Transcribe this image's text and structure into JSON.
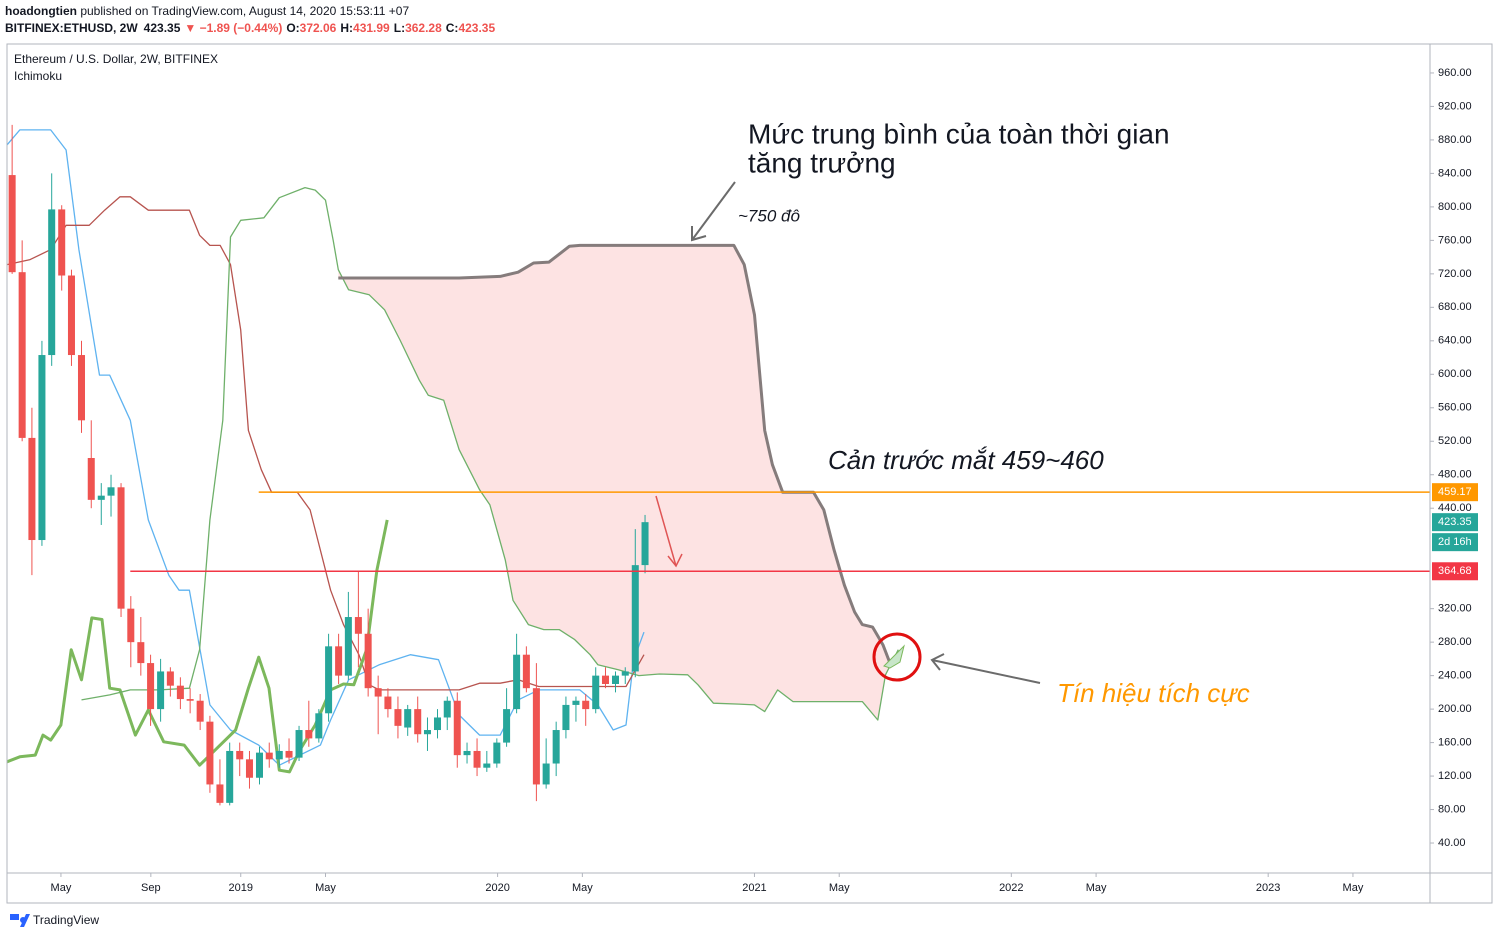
{
  "header": {
    "author": "hoadongtien",
    "published": " published on TradingView.com, August 14, 2020 15:53:11 +07",
    "symbol": "BITFINEX:ETHUSD, 2W",
    "change": "▼ −1.89 (−0.44%)",
    "ohlc_keys": [
      "O:",
      "H:",
      "L:",
      "C:"
    ]
  },
  "chart_data": {
    "type": "candlestick",
    "title": "Ethereum / U.S. Dollar, 2W, BITFINEX",
    "indicator": "Ichimoku",
    "x": [
      2018.11,
      2018.149,
      2018.187,
      2018.226,
      2018.264,
      2018.303,
      2018.341,
      2018.38,
      2018.418,
      2018.457,
      2018.495,
      2018.534,
      2018.572,
      2018.611,
      2018.649,
      2018.688,
      2018.726,
      2018.765,
      2018.803,
      2018.842,
      2018.88,
      2018.919,
      2018.957,
      2018.996,
      2019.034,
      2019.073,
      2019.111,
      2019.15,
      2019.188,
      2019.227,
      2019.265,
      2019.304,
      2019.342,
      2019.381,
      2019.419,
      2019.458,
      2019.496,
      2019.535,
      2019.573,
      2019.612,
      2019.65,
      2019.689,
      2019.727,
      2019.766,
      2019.804,
      2019.843,
      2019.881,
      2019.92,
      2019.958,
      2019.997,
      2020.035,
      2020.074,
      2020.112,
      2020.151,
      2020.189,
      2020.228,
      2020.266,
      2020.305,
      2020.343,
      2020.382,
      2020.42,
      2020.459,
      2020.497,
      2020.536,
      2020.574
    ],
    "open": [
      838,
      722,
      524,
      402,
      623,
      797,
      718,
      623,
      500,
      450,
      455,
      465,
      320,
      280,
      255,
      200,
      245,
      228,
      212,
      210,
      185,
      110,
      88,
      150,
      140,
      118,
      148,
      140,
      150,
      142,
      175,
      165,
      195,
      275,
      240,
      310,
      290,
      225,
      215,
      200,
      178,
      200,
      170,
      175,
      190,
      210,
      145,
      150,
      130,
      135,
      160,
      200,
      265,
      225,
      110,
      135,
      175,
      205,
      210,
      200,
      240,
      230,
      240,
      245,
      372.06
    ],
    "high": [
      898,
      760,
      560,
      640,
      840,
      802,
      725,
      640,
      545,
      470,
      480,
      470,
      335,
      310,
      265,
      260,
      250,
      238,
      225,
      218,
      192,
      140,
      160,
      160,
      150,
      155,
      160,
      158,
      165,
      180,
      210,
      200,
      290,
      290,
      340,
      365,
      320,
      240,
      225,
      215,
      205,
      215,
      190,
      200,
      215,
      220,
      160,
      165,
      150,
      165,
      225,
      290,
      275,
      255,
      165,
      185,
      215,
      215,
      218,
      250,
      250,
      245,
      250,
      415,
      431.99
    ],
    "low": [
      720,
      520,
      360,
      395,
      610,
      700,
      610,
      530,
      440,
      420,
      430,
      310,
      250,
      240,
      180,
      185,
      215,
      200,
      195,
      175,
      100,
      85,
      85,
      120,
      105,
      110,
      130,
      130,
      135,
      138,
      155,
      160,
      185,
      230,
      235,
      250,
      215,
      170,
      190,
      165,
      168,
      160,
      150,
      165,
      175,
      130,
      135,
      120,
      125,
      130,
      155,
      195,
      220,
      90,
      105,
      120,
      165,
      185,
      180,
      195,
      225,
      220,
      230,
      238,
      362.28
    ],
    "close": [
      722,
      524,
      402,
      623,
      797,
      718,
      623,
      545,
      450,
      455,
      465,
      320,
      280,
      255,
      200,
      245,
      228,
      212,
      210,
      185,
      110,
      88,
      150,
      140,
      118,
      148,
      140,
      150,
      142,
      175,
      165,
      195,
      275,
      240,
      310,
      290,
      225,
      215,
      200,
      180,
      200,
      170,
      175,
      190,
      210,
      145,
      150,
      130,
      135,
      160,
      200,
      265,
      225,
      110,
      135,
      175,
      205,
      210,
      200,
      240,
      230,
      240,
      245,
      372,
      423.35
    ],
    "up_color": "#26a69a",
    "down_color": "#ef5350",
    "overlays": [
      {
        "color": "#5fb3f0",
        "bold": false,
        "x": [
          2018.09,
          2018.14,
          2018.26,
          2018.32,
          2018.37,
          2018.45,
          2018.49,
          2018.57,
          2018.64,
          2018.72,
          2018.76,
          2018.8,
          2018.88,
          2018.96,
          2019.07,
          2019.15,
          2019.31,
          2019.35,
          2019.42,
          2019.54,
          2019.66,
          2019.77,
          2019.85,
          2019.93,
          2020.01,
          2020.08,
          2020.16,
          2020.32,
          2020.39,
          2020.45,
          2020.5,
          2020.53,
          2020.57
        ],
        "values": [
          874,
          892,
          892,
          868,
          749,
          599,
          599,
          545,
          426,
          360,
          342,
          342,
          205,
          175,
          157,
          133,
          157,
          187,
          235,
          253,
          265,
          259,
          193,
          169,
          169,
          211,
          223,
          223,
          205,
          175,
          181,
          259,
          292
        ]
      },
      {
        "color": "#b7544f",
        "bold": false,
        "x": [
          2018.09,
          2018.18,
          2018.26,
          2018.32,
          2018.41,
          2018.47,
          2018.53,
          2018.57,
          2018.64,
          2018.8,
          2018.84,
          2018.88,
          2018.92,
          2018.96,
          2019.0,
          2019.03,
          2019.08,
          2019.12,
          2019.22,
          2019.27,
          2019.35,
          2019.4,
          2019.46,
          2019.5,
          2019.54,
          2019.85,
          2019.93,
          2020.01,
          2020.08,
          2020.16,
          2020.36,
          2020.5,
          2020.57
        ],
        "values": [
          731,
          737,
          749,
          778,
          778,
          796,
          812,
          812,
          796,
          796,
          766,
          754,
          754,
          731,
          653,
          533,
          486,
          459,
          459,
          438,
          342,
          301,
          265,
          229,
          223,
          223,
          231,
          231,
          235,
          227,
          227,
          227,
          265
        ]
      },
      {
        "color": "#7cb85c",
        "bold": true,
        "x": [
          2018.09,
          2018.14,
          2018.2,
          2018.23,
          2018.26,
          2018.3,
          2018.34,
          2018.38,
          2018.42,
          2018.46,
          2018.49,
          2018.53,
          2018.59,
          2018.64,
          2018.7,
          2018.78,
          2018.84,
          2018.9,
          2018.98,
          2019.03,
          2019.07,
          2019.11,
          2019.15,
          2019.19,
          2019.23,
          2019.29,
          2019.35,
          2019.4,
          2019.44,
          2019.49,
          2019.53,
          2019.57
        ],
        "values": [
          137,
          143,
          145,
          169,
          163,
          181,
          271,
          235,
          309,
          307,
          225,
          223,
          169,
          199,
          161,
          157,
          133,
          151,
          175,
          225,
          262,
          225,
          127,
          125,
          151,
          181,
          223,
          230,
          229,
          271,
          366,
          426
        ]
      },
      {
        "color": "#6fb06a",
        "bold": false,
        "x": [
          2018.38,
          2018.49,
          2018.57,
          2018.685,
          2018.8,
          2018.84,
          2018.88,
          2018.93,
          2018.96,
          2019.0,
          2019.09,
          2019.15,
          2019.25,
          2019.29,
          2019.33,
          2019.36,
          2019.38,
          2019.42,
          2019.5,
          2019.56,
          2019.62,
          2019.695,
          2019.73,
          2019.79,
          2019.85,
          2019.93,
          2019.97,
          2020.03,
          2020.06,
          2020.12,
          2020.18,
          2020.24,
          2020.3,
          2020.36,
          2020.39,
          2020.47,
          2020.55,
          2020.63,
          2020.74,
          2020.78,
          2020.84,
          2020.94,
          2021.0,
          2021.04,
          2021.09,
          2021.15,
          2021.42,
          2021.48,
          2021.51,
          2021.56
        ],
        "values": [
          211,
          217,
          223,
          223,
          225,
          271,
          426,
          545,
          764,
          784,
          787,
          811,
          823,
          820,
          808,
          760,
          725,
          701,
          695,
          677,
          641,
          593,
          575,
          569,
          510,
          462,
          444,
          378,
          330,
          301,
          295,
          295,
          283,
          265,
          253,
          247,
          240,
          242,
          241,
          229,
          207,
          206,
          205,
          197,
          223,
          209,
          209,
          187,
          241,
          271
        ]
      },
      {
        "color": "#857c7c",
        "bold": true,
        "fill": "#fde3e3",
        "x": [
          2019.38,
          2019.85,
          2020.01,
          2020.08,
          2020.14,
          2020.2,
          2020.28,
          2020.32,
          2020.92,
          2020.96,
          2021.0,
          2021.04,
          2021.07,
          2021.11,
          2021.23,
          2021.27,
          2021.31,
          2021.35,
          2021.39,
          2021.42,
          2021.46,
          2021.5,
          2021.53
        ],
        "values": [
          715,
          715,
          717,
          722,
          733,
          734,
          753,
          754,
          754,
          731,
          671,
          533,
          492,
          459,
          459,
          438,
          390,
          348,
          316,
          301,
          298,
          277,
          253
        ]
      }
    ],
    "hlines": [
      {
        "value": 459.17,
        "color": "#ff9800",
        "start": 2019.07
      },
      {
        "value": 364.68,
        "color": "#f23645",
        "start": 2018.57
      }
    ],
    "countdown": "2d 16h",
    "ylim": [
      4.2,
      994.6
    ],
    "yticks": [
      {
        "value": 960,
        "label": "960.00"
      },
      {
        "value": 920,
        "label": "920.00"
      },
      {
        "value": 880,
        "label": "880.00"
      },
      {
        "value": 840,
        "label": "840.00"
      },
      {
        "value": 800,
        "label": "800.00"
      },
      {
        "value": 760,
        "label": "760.00"
      },
      {
        "value": 720,
        "label": "720.00"
      },
      {
        "value": 680,
        "label": "680.00"
      },
      {
        "value": 640,
        "label": "640.00"
      },
      {
        "value": 600,
        "label": "600.00"
      },
      {
        "value": 560,
        "label": "560.00"
      },
      {
        "value": 520,
        "label": "520.00"
      },
      {
        "value": 480,
        "label": "480.00"
      },
      {
        "value": 440,
        "label": "440.00"
      },
      {
        "value": 320,
        "label": "320.00"
      },
      {
        "value": 280,
        "label": "280.00"
      },
      {
        "value": 240,
        "label": "240.00"
      },
      {
        "value": 200,
        "label": "200.00"
      },
      {
        "value": 160,
        "label": "160.00"
      },
      {
        "value": 120,
        "label": "120.00"
      },
      {
        "value": 80,
        "label": "80.00"
      },
      {
        "value": 40,
        "label": "40.00"
      }
    ],
    "xlim": [
      2018.09,
      2023.63
    ],
    "xticks": [
      {
        "value": 2018.3,
        "label": "May"
      },
      {
        "value": 2018.65,
        "label": "Sep"
      },
      {
        "value": 2019,
        "label": "2019"
      },
      {
        "value": 2019.33,
        "label": "May"
      },
      {
        "value": 2020,
        "label": "2020"
      },
      {
        "value": 2020.33,
        "label": "May"
      },
      {
        "value": 2021,
        "label": "2021"
      },
      {
        "value": 2021.33,
        "label": "May"
      },
      {
        "value": 2022,
        "label": "2022"
      },
      {
        "value": 2022.33,
        "label": "May"
      },
      {
        "value": 2023,
        "label": "2023"
      },
      {
        "value": 2023.33,
        "label": "May"
      }
    ],
    "grid": false,
    "annotations": [
      "Mức trung bình của toàn thời gian",
      "tăng trưởng",
      "~750 đô",
      "Cản trước mắt 459~460",
      "Tín hiệu tích cực"
    ]
  },
  "footer": {
    "brand": "TradingView"
  }
}
